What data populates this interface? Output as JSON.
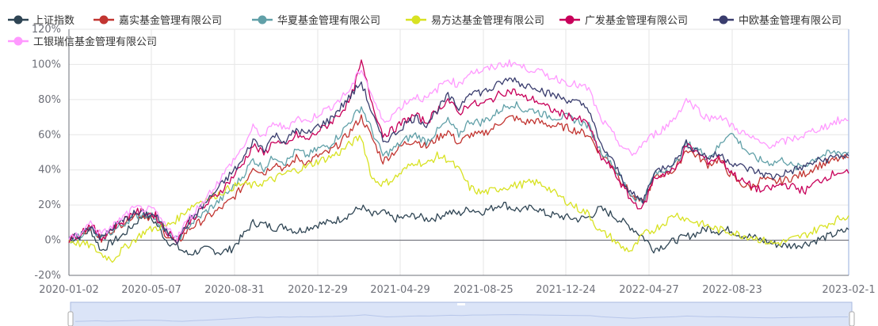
{
  "chart_data": {
    "type": "line",
    "x_ticks": [
      "2020-01-02",
      "2020-05-07",
      "2020-08-31",
      "2020-12-29",
      "2021-04-29",
      "2021-08-25",
      "2021-12-24",
      "2022-04-27",
      "2022-08-23",
      "2023-02-1"
    ],
    "y_ticks": [
      "120%",
      "100%",
      "80%",
      "60%",
      "40%",
      "20%",
      "0%",
      "-20%"
    ],
    "ylim": [
      -20,
      120
    ],
    "grid": true,
    "legend_position": "top",
    "has_datazoom_slider": true,
    "series": [
      {
        "name": "上证指数",
        "color": "#2f4554",
        "values": [
          0,
          2,
          6,
          -6,
          -1,
          3,
          9,
          15,
          10,
          0,
          -4,
          -8,
          -6,
          -5,
          -7,
          -5,
          2,
          10,
          9,
          7,
          8,
          5,
          7,
          9,
          10,
          12,
          15,
          19,
          14,
          16,
          12,
          13,
          14,
          12,
          13,
          16,
          15,
          18,
          16,
          18,
          21,
          18,
          17,
          19,
          15,
          14,
          13,
          12,
          13,
          18,
          15,
          11,
          7,
          2,
          -5,
          -3,
          0,
          2,
          4,
          7,
          5,
          6,
          3,
          2,
          0,
          -2,
          -3,
          -3,
          -2,
          0,
          2,
          4,
          6
        ]
      },
      {
        "name": "嘉实基金管理有限公司",
        "color": "#c23531",
        "values": [
          0,
          3,
          8,
          0,
          6,
          10,
          15,
          14,
          12,
          3,
          -2,
          6,
          10,
          14,
          18,
          23,
          30,
          42,
          38,
          44,
          40,
          47,
          44,
          48,
          50,
          55,
          62,
          70,
          58,
          45,
          50,
          55,
          57,
          53,
          58,
          62,
          55,
          60,
          60,
          63,
          68,
          70,
          67,
          68,
          66,
          65,
          64,
          62,
          60,
          50,
          44,
          34,
          25,
          21,
          35,
          38,
          40,
          52,
          48,
          43,
          46,
          38,
          32,
          30,
          35,
          33,
          34,
          36,
          38,
          42,
          44,
          46,
          47
        ]
      },
      {
        "name": "华夏基金管理有限公司",
        "color": "#61a0a8",
        "values": [
          0,
          3,
          7,
          0,
          5,
          9,
          14,
          15,
          13,
          4,
          0,
          8,
          13,
          18,
          23,
          29,
          36,
          46,
          41,
          48,
          44,
          51,
          48,
          52,
          54,
          60,
          68,
          76,
          62,
          48,
          52,
          57,
          60,
          56,
          62,
          68,
          60,
          68,
          67,
          70,
          75,
          78,
          74,
          74,
          71,
          70,
          70,
          68,
          65,
          52,
          45,
          35,
          25,
          22,
          37,
          40,
          43,
          55,
          52,
          47,
          53,
          62,
          55,
          48,
          45,
          44,
          46,
          41,
          43,
          47,
          49,
          50,
          50
        ]
      },
      {
        "name": "易方达基金管理有限公司",
        "color": "#d8e222",
        "values": [
          0,
          -2,
          -3,
          -8,
          -11,
          -5,
          0,
          5,
          7,
          8,
          12,
          18,
          22,
          24,
          27,
          30,
          32,
          31,
          33,
          35,
          38,
          40,
          42,
          45,
          47,
          50,
          55,
          59,
          35,
          32,
          35,
          40,
          45,
          43,
          48,
          46,
          40,
          30,
          27,
          28,
          30,
          31,
          32,
          33,
          31,
          26,
          22,
          18,
          15,
          5,
          2,
          -4,
          -6,
          3,
          6,
          10,
          15,
          12,
          10,
          8,
          6,
          5,
          3,
          2,
          0,
          -2,
          -1,
          1,
          3,
          6,
          9,
          12,
          14
        ]
      },
      {
        "name": "广发基金管理有限公司",
        "color": "#c8005a",
        "values": [
          0,
          4,
          9,
          1,
          7,
          11,
          16,
          16,
          14,
          5,
          0,
          10,
          16,
          22,
          28,
          35,
          43,
          54,
          49,
          57,
          53,
          60,
          57,
          62,
          66,
          72,
          80,
          101,
          78,
          60,
          63,
          68,
          71,
          67,
          74,
          80,
          72,
          78,
          77,
          80,
          84,
          85,
          81,
          80,
          76,
          73,
          71,
          69,
          66,
          48,
          42,
          32,
          22,
          18,
          35,
          38,
          40,
          54,
          50,
          45,
          47,
          40,
          34,
          31,
          28,
          30,
          32,
          30,
          28,
          33,
          36,
          39,
          38
        ]
      },
      {
        "name": "中欧基金管理有限公司",
        "color": "#3a3d6e",
        "values": [
          0,
          3,
          8,
          1,
          7,
          11,
          15,
          15,
          14,
          5,
          0,
          10,
          17,
          24,
          31,
          38,
          45,
          57,
          52,
          60,
          56,
          63,
          60,
          65,
          68,
          75,
          82,
          90,
          72,
          56,
          60,
          66,
          70,
          66,
          74,
          82,
          75,
          85,
          84,
          86,
          90,
          92,
          88,
          88,
          84,
          82,
          80,
          78,
          75,
          55,
          47,
          36,
          26,
          22,
          38,
          42,
          45,
          55,
          51,
          47,
          49,
          45,
          42,
          40,
          38,
          36,
          38,
          40,
          42,
          45,
          46,
          48,
          48
        ]
      },
      {
        "name": "工银瑞信基金管理有限公司",
        "color": "#ff99ff",
        "values": [
          0,
          4,
          10,
          3,
          8,
          13,
          18,
          18,
          16,
          7,
          2,
          12,
          19,
          27,
          35,
          44,
          52,
          64,
          59,
          67,
          63,
          70,
          67,
          72,
          75,
          80,
          86,
          98,
          82,
          67,
          72,
          78,
          82,
          80,
          86,
          92,
          88,
          96,
          96,
          98,
          100,
          101,
          98,
          97,
          94,
          92,
          90,
          88,
          86,
          70,
          62,
          54,
          48,
          55,
          60,
          64,
          70,
          80,
          75,
          69,
          71,
          66,
          62,
          58,
          55,
          54,
          56,
          58,
          60,
          63,
          65,
          68,
          68
        ]
      }
    ]
  }
}
